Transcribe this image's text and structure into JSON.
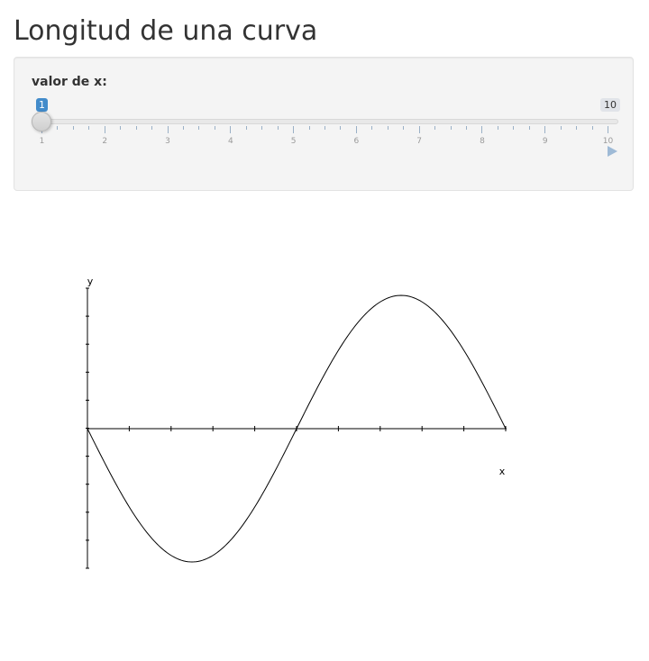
{
  "page": {
    "title": "Longitud de una curva"
  },
  "slider": {
    "label": "valor de x:",
    "value": 1,
    "min": 1,
    "max": 10,
    "value_label": "1",
    "max_label": "10",
    "ticks": [
      "1",
      "2",
      "3",
      "4",
      "5",
      "6",
      "7",
      "8",
      "9",
      "10"
    ],
    "play_icon": "play-icon",
    "accent_color": "#428bca"
  },
  "chart_data": {
    "type": "line",
    "title": "",
    "xlabel": "x",
    "ylabel": "y",
    "function": "-sin(x)",
    "xlim": [
      0,
      6.283
    ],
    "ylim": [
      -1,
      1
    ],
    "x_tick_count": 10,
    "y_tick_count": 10,
    "grid": false,
    "series": [
      {
        "x": [
          0,
          0.3142,
          0.6283,
          0.9425,
          1.2566,
          1.5708,
          1.885,
          2.1991,
          2.5133,
          2.8274,
          3.1416,
          3.4558,
          3.7699,
          4.0841,
          4.3982,
          4.7124,
          5.0265,
          5.3407,
          5.6549,
          5.969,
          6.2832
        ],
        "values": [
          0,
          -0.309,
          -0.588,
          -0.809,
          -0.951,
          -1,
          -0.951,
          -0.809,
          -0.588,
          -0.309,
          0,
          0.309,
          0.588,
          0.809,
          0.951,
          1,
          0.951,
          0.809,
          0.588,
          0.309,
          0
        ]
      }
    ],
    "line_color": "#000000"
  }
}
